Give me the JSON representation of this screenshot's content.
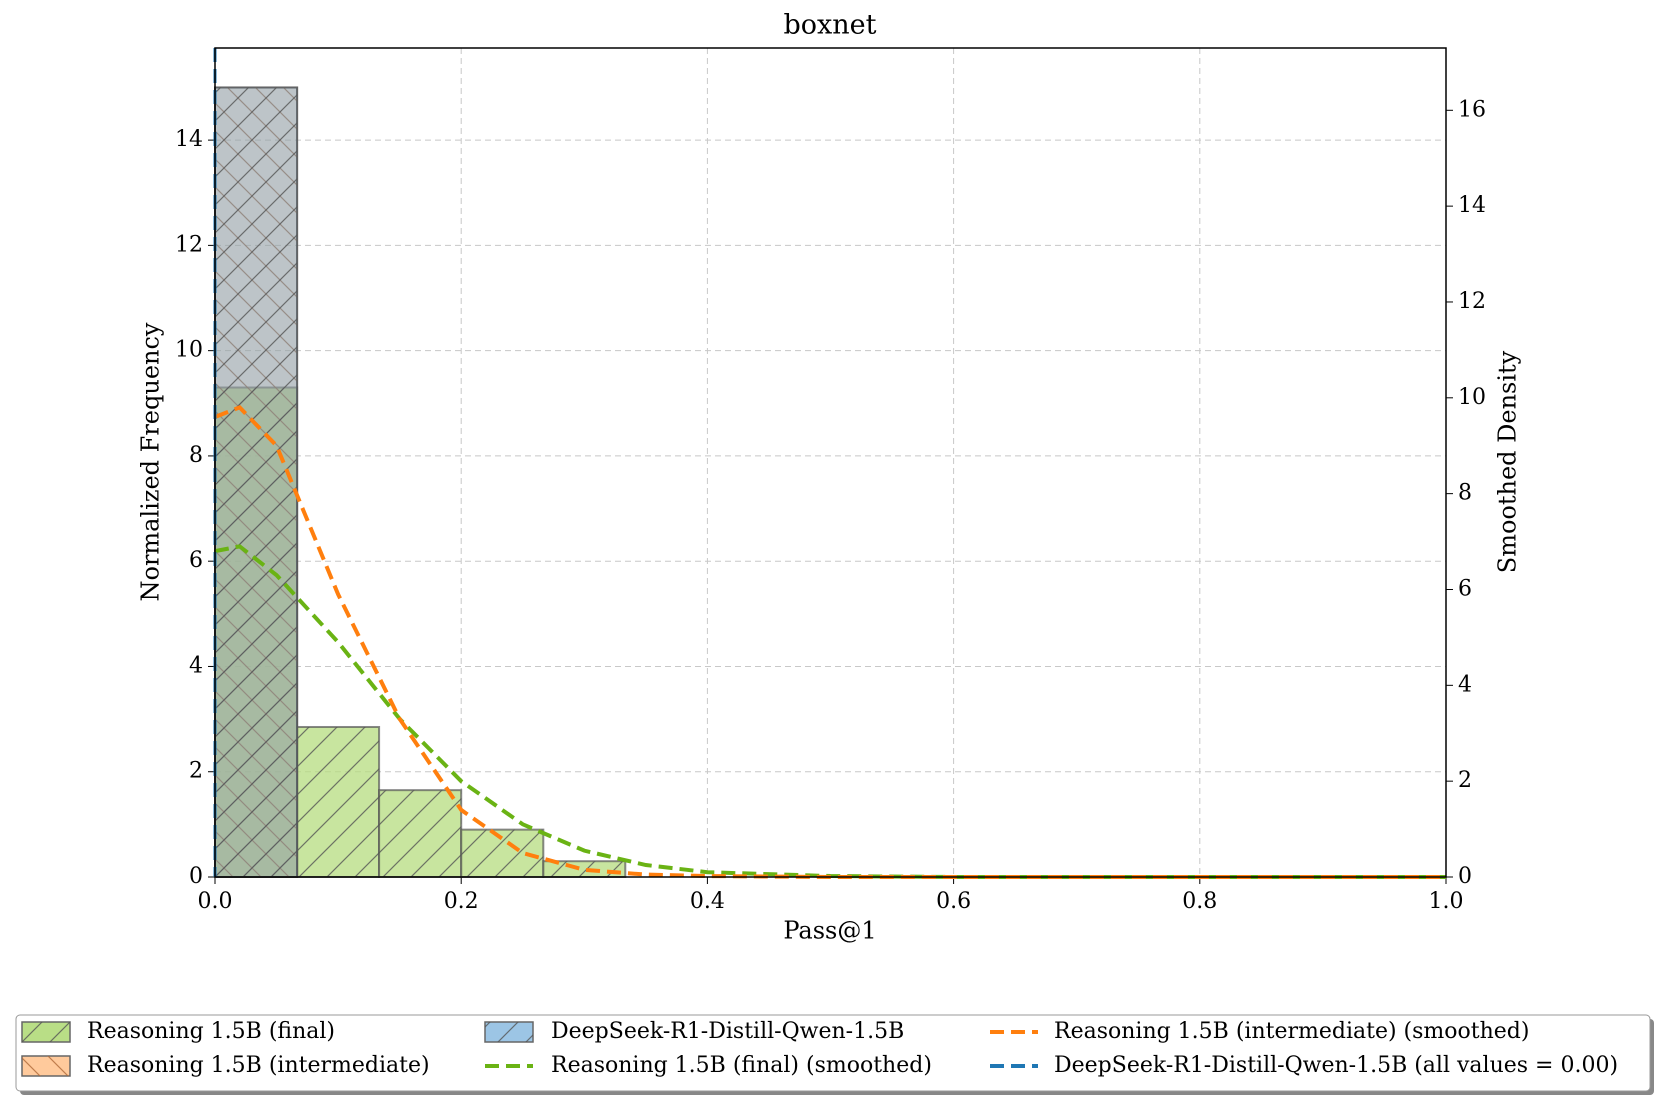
{
  "chart_data": {
    "type": "histogram",
    "title": "boxnet",
    "xlabel": "Pass@1",
    "ylabel": "Normalized Frequency",
    "y2label": "Smoothed Density",
    "bins": [
      0,
      0.0667,
      0.1333,
      0.2,
      0.2667,
      0.3333,
      0.4,
      0.4667,
      0.5333,
      0.6,
      0.6667,
      0.7333,
      0.8,
      0.8667,
      0.9333,
      1.0
    ],
    "histograms": [
      {
        "name": "Reasoning 1.5B (final)",
        "color": "#b5dc7f",
        "opacity": 0.75,
        "hatch": "/",
        "values": [
          9.3,
          2.85,
          1.65,
          0.9,
          0.3,
          0,
          0,
          0,
          0,
          0,
          0,
          0,
          0,
          0,
          0
        ]
      },
      {
        "name": "Reasoning 1.5B (intermediate)",
        "color": "#ff9f4a",
        "opacity": 0.35,
        "hatch": "\\",
        "values": [
          15,
          0,
          0,
          0,
          0,
          0,
          0,
          0,
          0,
          0,
          0,
          0,
          0,
          0,
          0
        ]
      },
      {
        "name": "DeepSeek-R1-Distill-Qwen-1.5B",
        "color": "#5a9fd4",
        "opacity": 0.4,
        "hatch": "/",
        "values": [
          15,
          0,
          0,
          0,
          0,
          0,
          0,
          0,
          0,
          0,
          0,
          0,
          0,
          0,
          0
        ]
      }
    ],
    "x": [
      0,
      0.02,
      0.05,
      0.1,
      0.15,
      0.2,
      0.25,
      0.3,
      0.35,
      0.4,
      0.5,
      0.6,
      0.8,
      1.0
    ],
    "series": [
      {
        "name": "Reasoning 1.5B (final) (smoothed)",
        "color": "#6ab314",
        "axis": "y2",
        "values": [
          6.8,
          6.9,
          6.3,
          4.9,
          3.3,
          2.0,
          1.1,
          0.55,
          0.25,
          0.1,
          0.02,
          0,
          0,
          0
        ]
      },
      {
        "name": "Reasoning 1.5B (intermediate) (smoothed)",
        "color": "#ff7f0e",
        "axis": "y2",
        "values": [
          9.6,
          9.8,
          9.0,
          5.9,
          3.3,
          1.4,
          0.5,
          0.15,
          0.05,
          0.02,
          0,
          0,
          0,
          0
        ]
      }
    ],
    "vline": {
      "name": "DeepSeek-R1-Distill-Qwen-1.5B (all values = 0.00)",
      "color": "#1f77b4",
      "x": 0
    },
    "xlim": [
      0,
      1
    ],
    "xticks": [
      {
        "value": 0,
        "label": "0.0"
      },
      {
        "value": 0.2,
        "label": "0.2"
      },
      {
        "value": 0.4,
        "label": "0.4"
      },
      {
        "value": 0.6,
        "label": "0.6"
      },
      {
        "value": 0.8,
        "label": "0.8"
      },
      {
        "value": 1,
        "label": "1.0"
      }
    ],
    "ylim": [
      0,
      15.75
    ],
    "yticks": [
      0,
      2,
      4,
      6,
      8,
      10,
      12,
      14
    ],
    "y2lim": [
      0,
      17.3
    ],
    "y2ticks": [
      0,
      2,
      4,
      6,
      8,
      10,
      12,
      14,
      16
    ],
    "grid": true,
    "legend": "below"
  }
}
